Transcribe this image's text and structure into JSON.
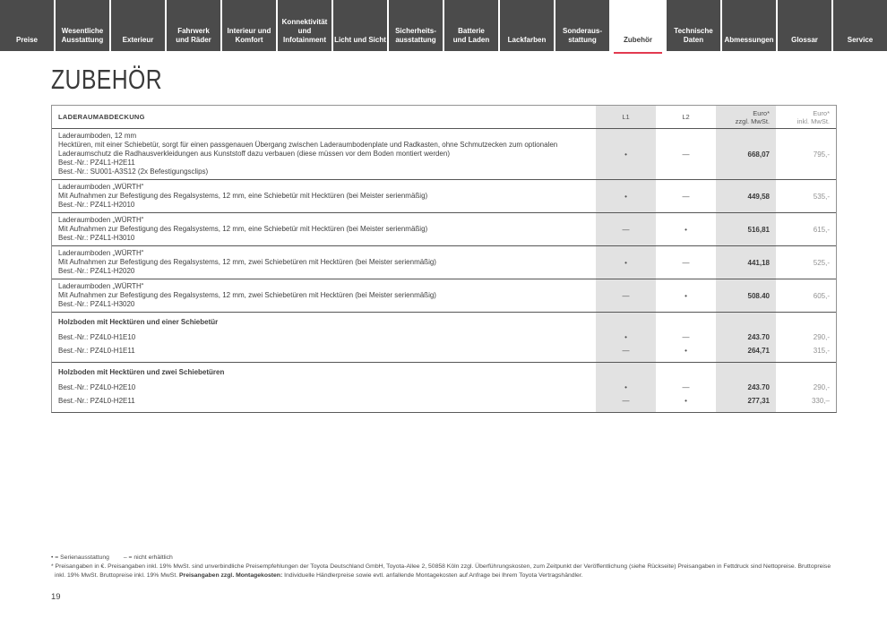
{
  "colors": {
    "accent_red": "#e23a50",
    "tab_background": "#4b4b4b",
    "column_shade": "#e2e2e2"
  },
  "tabs": {
    "items": [
      {
        "label": "Preise",
        "active": false
      },
      {
        "label": "Wesentliche\nAusstattung",
        "active": false
      },
      {
        "label": "Exterieur",
        "active": false
      },
      {
        "label": "Fahrwerk\nund Räder",
        "active": false
      },
      {
        "label": "Interieur und\nKomfort",
        "active": false
      },
      {
        "label": "Konnektivität\nund\nInfotainment",
        "active": false
      },
      {
        "label": "Licht und Sicht",
        "active": false
      },
      {
        "label": "Sicherheits-\nausstattung",
        "active": false
      },
      {
        "label": "Batterie\nund Laden",
        "active": false
      },
      {
        "label": "Lackfarben",
        "active": false
      },
      {
        "label": "Sonderaus-\nstattung",
        "active": false
      },
      {
        "label": "Zubehör",
        "active": true
      },
      {
        "label": "Technische\nDaten",
        "active": false
      },
      {
        "label": "Abmessungen",
        "active": false
      },
      {
        "label": "Glossar",
        "active": false
      },
      {
        "label": "Service",
        "active": false
      }
    ]
  },
  "page": {
    "title": "ZUBEHÖR",
    "number": "19"
  },
  "table": {
    "section_title": "LADERAUMABDECKUNG",
    "columns": {
      "l1": "L1",
      "l2": "L2",
      "net": "Euro*\nzzgl. MwSt.",
      "gross": "Euro*\ninkl. MwSt."
    },
    "rows": [
      {
        "title": "Laderaumboden, 12 mm",
        "desc": "Hecktüren, mit einer Schiebetür, sorgt für einen passgenauen Übergang zwischen Laderaumbodenplate und Radkasten, ohne Schmutzecken zum optionalen Laderaumschutz die Radhausverkleidungen aus Kunststoff dazu verbauen (diese müssen vor dem Boden montiert werden)",
        "codes": [
          "Best.-Nr.: PZ4L1-H2E11",
          "Best.-Nr.: SU001-A3S12 (2x Befestigungsclips)"
        ],
        "l1": "•",
        "l2": "—",
        "net": "668,07",
        "gross": "795,-"
      },
      {
        "title": "Laderaumboden „WÜRTH“",
        "desc": "Mit Aufnahmen zur Befestigung des Regalsystems, 12 mm, eine Schiebetür mit Hecktüren (bei Meister serienmäßig)",
        "codes": [
          "Best.-Nr.: PZ4L1-H2010"
        ],
        "l1": "•",
        "l2": "—",
        "net": "449,58",
        "gross": "535,-"
      },
      {
        "title": "Laderaumboden „WÜRTH“",
        "desc": "Mit Aufnahmen zur Befestigung des Regalsystems, 12 mm, eine Schiebetür mit Hecktüren (bei Meister serienmäßig)",
        "codes": [
          "Best.-Nr.: PZ4L1-H3010"
        ],
        "l1": "—",
        "l2": "•",
        "net": "516,81",
        "gross": "615,-"
      },
      {
        "title": "Laderaumboden „WÜRTH“",
        "desc": "Mit Aufnahmen zur Befestigung des Regalsystems, 12 mm, zwei Schiebetüren mit Hecktüren (bei Meister serienmäßig)",
        "codes": [
          "Best.-Nr.: PZ4L1-H2020"
        ],
        "l1": "•",
        "l2": "—",
        "net": "441,18",
        "gross": "525,-"
      },
      {
        "title": "Laderaumboden „WÜRTH“",
        "desc": "Mit Aufnahmen zur Befestigung des Regalsystems, 12 mm, zwei Schiebetüren mit Hecktüren (bei Meister serienmäßig)",
        "codes": [
          "Best.-Nr.: PZ4L1-H3020"
        ],
        "l1": "—",
        "l2": "•",
        "net": "508.40",
        "gross": "605,-"
      }
    ],
    "groups": [
      {
        "title": "Holzboden mit Hecktüren und einer Schiebetür",
        "items": [
          {
            "code": "Best.-Nr.: PZ4L0-H1E10",
            "l1": "•",
            "l2": "—",
            "net": "243.70",
            "gross": "290,-"
          },
          {
            "code": "Best.-Nr.: PZ4L0-H1E11",
            "l1": "—",
            "l2": "•",
            "net": "264,71",
            "gross": "315,-"
          }
        ]
      },
      {
        "title": "Holzboden mit Hecktüren und zwei Schiebetüren",
        "items": [
          {
            "code": "Best.-Nr.: PZ4L0-H2E10",
            "l1": "•",
            "l2": "—",
            "net": "243.70",
            "gross": "290,-"
          },
          {
            "code": "Best.-Nr.: PZ4L0-H2E11",
            "l1": "—",
            "l2": "•",
            "net": "277,31",
            "gross": "330,–"
          }
        ]
      }
    ]
  },
  "legend": {
    "serien": "• = Serienausstattung",
    "nicht": "– = nicht erhältlich"
  },
  "footnote": {
    "part1": "* Preisangaben in €. Preisangaben inkl. 19% MwSt. sind unverbindliche Preisempfehlungen der Toyota Deutschland GmbH, Toyota-Allee 2, 50858 Köln zzgl. Überführungskosten, zum Zeitpunkt der Veröffentlichung (siehe Rückseite) Preisangaben in Fettdruck sind Nettopreise. Bruttopreise inkl. 19% MwSt. Bruttopreise inkl. 19% MwSt. ",
    "bold": "Preisangaben zzgl. Montagekosten:",
    "part2": " Individuelle Händlerpreise sowie evtl. anfallende Montagekosten auf Anfrage bei Ihrem Toyota Vertragshändler."
  }
}
